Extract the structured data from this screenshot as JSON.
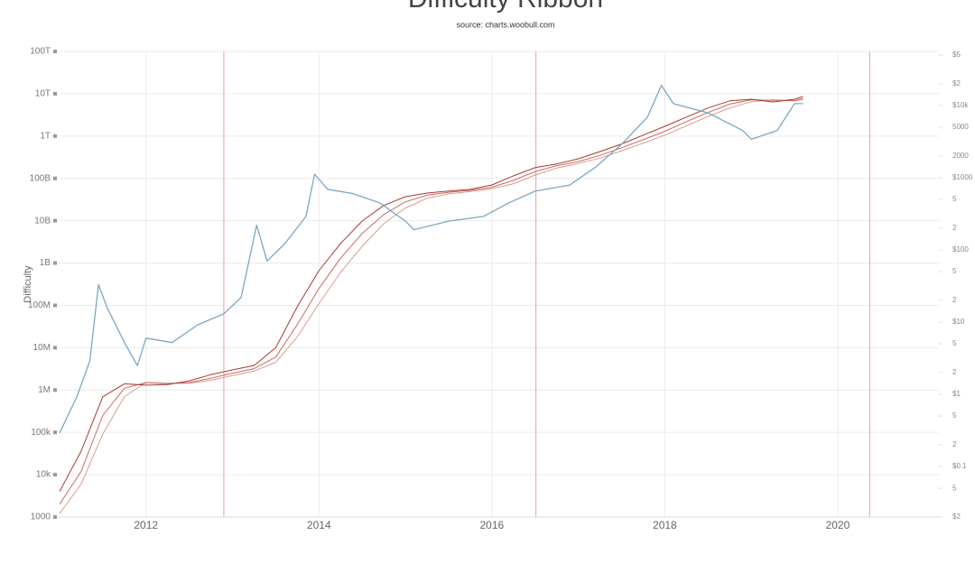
{
  "chart_data": {
    "type": "line",
    "title": "Difficulty Ribbon",
    "subtitle": "source: charts.woobull.com",
    "y_label": "Difficulty",
    "log_y": true,
    "log_y2": true,
    "grid": true,
    "xlim": [
      2010.99,
      2021.17
    ],
    "xticks": [
      2012,
      2014,
      2016,
      2018,
      2020
    ],
    "ylim": [
      1000,
      100000000000000
    ],
    "yticks": [
      1000,
      {
        "value": 10000,
        "label": "10k"
      },
      {
        "value": 100000,
        "label": "100k"
      },
      {
        "value": 1000000,
        "label": "1M"
      },
      {
        "value": 10000000,
        "label": "10M"
      },
      {
        "value": 100000000,
        "label": "100M"
      },
      {
        "value": 1000000000,
        "label": "1B"
      },
      {
        "value": 10000000000,
        "label": "10B"
      },
      {
        "value": 100000000000,
        "label": "100B"
      },
      {
        "value": 1000000000000,
        "label": "1T"
      },
      {
        "value": 10000000000000,
        "label": "10T"
      },
      {
        "value": 100000000000000,
        "label": "100T"
      }
    ],
    "y2lim": [
      0.02,
      56000
    ],
    "y2ticks": [
      {
        "value": 50000,
        "label": "$5"
      },
      {
        "value": 20000,
        "label": "$2"
      },
      {
        "value": 10000,
        "label": "$10k"
      },
      5000,
      2000,
      {
        "value": 1000,
        "label": "$1000"
      },
      {
        "value": 500,
        "label": "5"
      },
      {
        "value": 200,
        "label": "2"
      },
      {
        "value": 100,
        "label": "$100"
      },
      {
        "value": 50,
        "label": "5"
      },
      {
        "value": 20,
        "label": "2"
      },
      {
        "value": 10,
        "label": "$10"
      },
      {
        "value": 5,
        "label": "5"
      },
      {
        "value": 2,
        "label": "2"
      },
      {
        "value": 1,
        "label": "$1"
      },
      {
        "value": 0.5,
        "label": "5"
      },
      {
        "value": 0.2,
        "label": "2"
      },
      {
        "value": 0.1,
        "label": "$0.1"
      },
      {
        "value": 0.05,
        "label": "5"
      },
      {
        "value": 0.02,
        "label": "$2"
      }
    ],
    "halvings": [
      2012.9,
      2016.51,
      2020.37
    ],
    "halving_color": "#e4a0a0",
    "x": [
      2011,
      2011.25,
      2011.5,
      2011.75,
      2012,
      2012.25,
      2012.5,
      2012.75,
      2013,
      2013.25,
      2013.5,
      2013.75,
      2014,
      2014.25,
      2014.5,
      2014.75,
      2015,
      2015.25,
      2015.5,
      2015.75,
      2016,
      2016.25,
      2016.5,
      2016.75,
      2017,
      2017.25,
      2017.5,
      2017.75,
      2018,
      2018.25,
      2018.5,
      2018.75,
      2019,
      2019.25,
      2019.5,
      2019.6
    ],
    "series": [
      {
        "color": "#d99a90",
        "values": [
          1200,
          6000,
          90000,
          700000,
          1500000,
          1450000,
          1450000,
          1700000,
          2200000,
          2800000,
          4500000,
          18000000,
          110000000,
          600000000,
          2500000000,
          8500000000,
          20000000000,
          34000000000,
          43000000000,
          49000000000,
          57000000000,
          75000000000,
          120000000000,
          175000000000,
          225000000000,
          300000000000,
          450000000000,
          680000000000,
          1050000000000,
          1750000000000,
          2900000000000,
          4600000000000,
          6500000000000,
          7200000000000,
          6800000000000,
          7300000000000
        ]
      },
      {
        "color": "#c96a60",
        "values": [
          2000,
          12000,
          250000,
          1100000,
          1500000,
          1400000,
          1500000,
          1900000,
          2500000,
          3200000,
          6000000,
          35000000,
          250000000,
          1300000000,
          5000000000,
          14000000000,
          28000000000,
          40000000000,
          47000000000,
          52000000000,
          62000000000,
          90000000000,
          145000000000,
          200000000000,
          250000000000,
          350000000000,
          530000000000,
          820000000000,
          1300000000000,
          2200000000000,
          3600000000000,
          5700000000000,
          7200000000000,
          7000000000000,
          6900000000000,
          7800000000000
        ]
      },
      {
        "color": "#a8382e",
        "values": [
          4000,
          36000,
          690000,
          1400000,
          1300000,
          1350000,
          1650000,
          2300000,
          3000000,
          3800000,
          10000000,
          93000000,
          660000000,
          2900000000,
          9800000000,
          23000000000,
          37000000000,
          45000000000,
          50000000000,
          55000000000,
          70000000000,
          115000000000,
          180000000000,
          220000000000,
          290000000000,
          430000000000,
          650000000000,
          1050000000000,
          1700000000000,
          2800000000000,
          4600000000000,
          6800000000000,
          7400000000000,
          6400000000000,
          7400000000000,
          8700000000000
        ]
      },
      {
        "color": "#7ba7c4",
        "axis": "y2",
        "x": [
          2011,
          2011.2,
          2011.35,
          2011.45,
          2011.55,
          2011.75,
          2011.9,
          2012,
          2012.3,
          2012.6,
          2012.9,
          2013.1,
          2013.28,
          2013.4,
          2013.6,
          2013.85,
          2013.95,
          2014.1,
          2014.4,
          2014.7,
          2015,
          2015.1,
          2015.5,
          2015.9,
          2016.2,
          2016.5,
          2016.9,
          2017.2,
          2017.5,
          2017.8,
          2017.96,
          2018.1,
          2018.5,
          2018.9,
          2019,
          2019.3,
          2019.5,
          2019.6
        ],
        "values": [
          0.29,
          0.92,
          2.9,
          33,
          16,
          5.2,
          2.5,
          6,
          5.2,
          9.2,
          13,
          22,
          220,
          70,
          120,
          290,
          1120,
          690,
          600,
          450,
          250,
          190,
          250,
          290,
          450,
          650,
          790,
          1400,
          2900,
          6900,
          19000,
          10600,
          7900,
          4500,
          3400,
          4500,
          10600,
          10600
        ]
      }
    ]
  }
}
